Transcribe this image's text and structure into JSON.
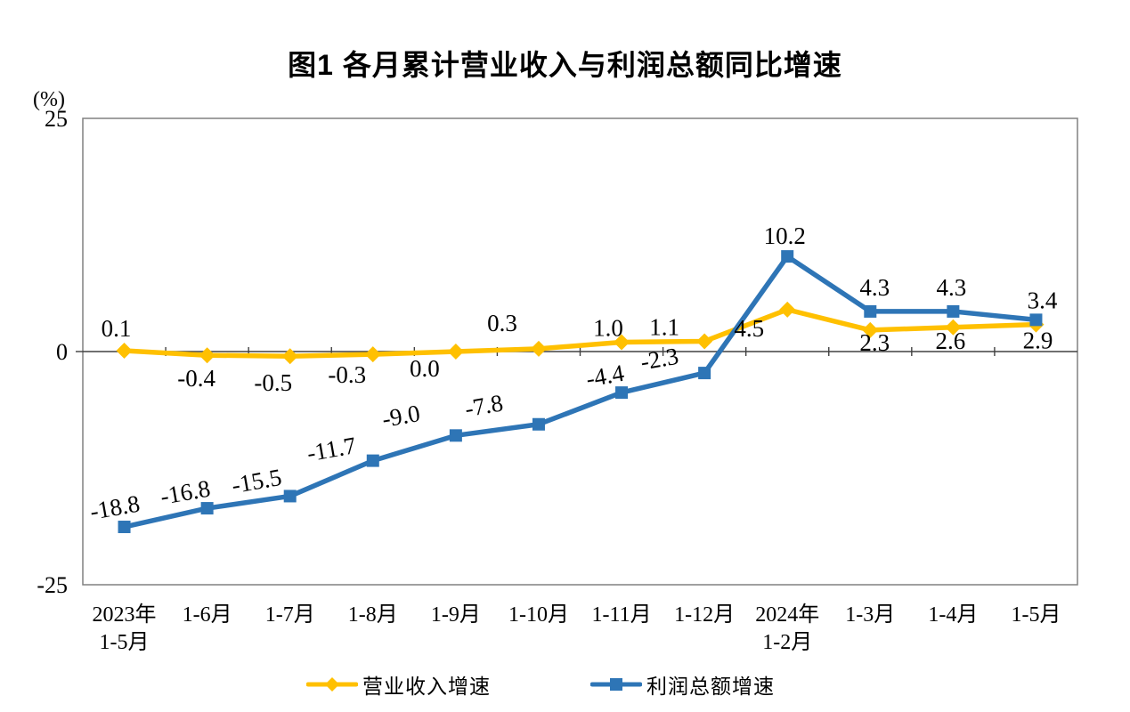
{
  "title": "图1  各月累计营业收入与利润总额同比增速",
  "chart_data": {
    "type": "line",
    "title": "图1  各月累计营业收入与利润总额同比增速",
    "unit_label": "(%)",
    "categories": [
      [
        "2023年",
        "1-5月"
      ],
      [
        "1-6月"
      ],
      [
        "1-7月"
      ],
      [
        "1-8月"
      ],
      [
        "1-9月"
      ],
      [
        "1-10月"
      ],
      [
        "1-11月"
      ],
      [
        "1-12月"
      ],
      [
        "2024年",
        "1-2月"
      ],
      [
        "1-3月"
      ],
      [
        "1-4月"
      ],
      [
        "1-5月"
      ]
    ],
    "ylim": [
      -25,
      25
    ],
    "y_ticks": [
      "25",
      "0",
      "-25"
    ],
    "grid": false,
    "legend_position": "bottom",
    "series": [
      {
        "name": "营业收入增速",
        "color": "#FFC000",
        "marker": "diamond",
        "values": [
          0.1,
          -0.4,
          -0.5,
          -0.3,
          0.0,
          0.3,
          1.0,
          1.1,
          4.5,
          2.3,
          2.6,
          2.9
        ],
        "labels": [
          "0.1",
          "-0.4",
          "-0.5",
          "-0.3",
          "0.0",
          "0.3",
          "1.0",
          "1.1",
          "4.5",
          "2.3",
          "2.6",
          "2.9"
        ]
      },
      {
        "name": "利润总额增速",
        "color": "#2E75B6",
        "marker": "square",
        "values": [
          -18.8,
          -16.8,
          -15.5,
          -11.7,
          -9.0,
          -7.8,
          -4.4,
          -2.3,
          10.2,
          4.3,
          4.3,
          3.4
        ],
        "labels": [
          "-18.8",
          "-16.8",
          "-15.5",
          "-11.7",
          "-9.0",
          "-7.8",
          "-4.4",
          "-2.3",
          "10.2",
          "4.3",
          "4.3",
          "3.4"
        ]
      }
    ]
  },
  "colors": {
    "plot_border": "#808080",
    "zero_axis": "#404040",
    "revenue_series": "#FFC000",
    "profit_series": "#2E75B6"
  }
}
